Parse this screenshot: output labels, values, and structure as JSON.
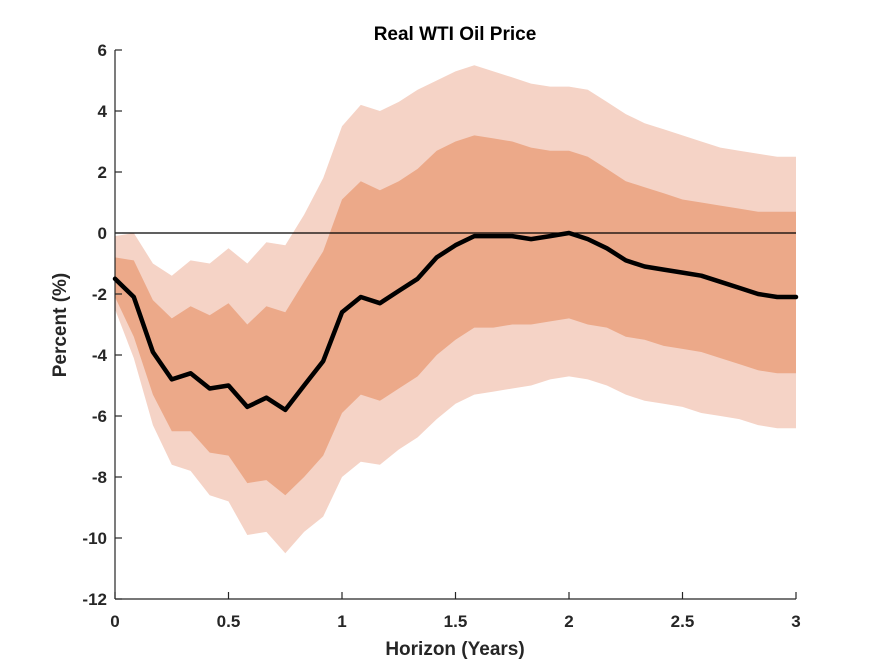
{
  "chart_data": {
    "type": "area",
    "title": "Real WTI Oil Price",
    "xlabel": "Horizon (Years)",
    "ylabel": "Percent (%)",
    "xlim": [
      0,
      3
    ],
    "ylim": [
      -12,
      6
    ],
    "x_ticks": [
      0,
      0.5,
      1,
      1.5,
      2,
      2.5,
      3
    ],
    "x_tick_labels": [
      "0",
      "0.5",
      "1",
      "1.5",
      "2",
      "2.5",
      "3"
    ],
    "y_ticks": [
      -12,
      -10,
      -8,
      -6,
      -4,
      -2,
      0,
      2,
      4,
      6
    ],
    "y_tick_labels": [
      "-12",
      "-10",
      "-8",
      "-6",
      "-4",
      "-2",
      "0",
      "2",
      "4",
      "6"
    ],
    "zero_line": 0,
    "colors": {
      "outer_band": "#f5d3c6",
      "inner_band": "#eca989",
      "median": "#000000",
      "zero_line": "#000000",
      "axis": "#262626"
    },
    "x": [
      0,
      0.083,
      0.167,
      0.25,
      0.333,
      0.417,
      0.5,
      0.583,
      0.667,
      0.75,
      0.833,
      0.917,
      1.0,
      1.083,
      1.167,
      1.25,
      1.333,
      1.417,
      1.5,
      1.583,
      1.667,
      1.75,
      1.833,
      1.917,
      2.0,
      2.083,
      2.167,
      2.25,
      2.333,
      2.417,
      2.5,
      2.583,
      2.667,
      2.75,
      2.833,
      2.917,
      3.0
    ],
    "series": [
      {
        "name": "Median",
        "values": [
          -1.5,
          -2.1,
          -3.9,
          -4.8,
          -4.6,
          -5.1,
          -5.0,
          -5.7,
          -5.4,
          -5.8,
          -5.0,
          -4.2,
          -2.6,
          -2.1,
          -2.3,
          -1.9,
          -1.5,
          -0.8,
          -0.4,
          -0.1,
          -0.1,
          -0.1,
          -0.2,
          -0.1,
          0.0,
          -0.2,
          -0.5,
          -0.9,
          -1.1,
          -1.2,
          -1.3,
          -1.4,
          -1.6,
          -1.8,
          -2.0,
          -2.1,
          -2.1
        ]
      },
      {
        "name": "Inner band upper",
        "values": [
          -0.8,
          -0.9,
          -2.2,
          -2.8,
          -2.4,
          -2.7,
          -2.3,
          -3.0,
          -2.4,
          -2.6,
          -1.6,
          -0.6,
          1.1,
          1.7,
          1.4,
          1.7,
          2.1,
          2.7,
          3.0,
          3.2,
          3.1,
          3.0,
          2.8,
          2.7,
          2.7,
          2.5,
          2.1,
          1.7,
          1.5,
          1.3,
          1.1,
          1.0,
          0.9,
          0.8,
          0.7,
          0.7,
          0.7
        ]
      },
      {
        "name": "Inner band lower",
        "values": [
          -2.1,
          -3.4,
          -5.3,
          -6.5,
          -6.5,
          -7.2,
          -7.3,
          -8.2,
          -8.1,
          -8.6,
          -8.0,
          -7.3,
          -5.9,
          -5.3,
          -5.5,
          -5.1,
          -4.7,
          -4.0,
          -3.5,
          -3.1,
          -3.1,
          -3.0,
          -3.0,
          -2.9,
          -2.8,
          -3.0,
          -3.1,
          -3.4,
          -3.5,
          -3.7,
          -3.8,
          -3.9,
          -4.1,
          -4.3,
          -4.5,
          -4.6,
          -4.6
        ]
      },
      {
        "name": "Outer band upper",
        "values": [
          -0.1,
          0.0,
          -1.0,
          -1.4,
          -0.9,
          -1.0,
          -0.5,
          -1.0,
          -0.3,
          -0.4,
          0.6,
          1.8,
          3.5,
          4.2,
          4.0,
          4.3,
          4.7,
          5.0,
          5.3,
          5.5,
          5.3,
          5.1,
          4.9,
          4.8,
          4.8,
          4.7,
          4.3,
          3.9,
          3.6,
          3.4,
          3.2,
          3.0,
          2.8,
          2.7,
          2.6,
          2.5,
          2.5
        ]
      },
      {
        "name": "Outer band lower",
        "values": [
          -2.5,
          -4.1,
          -6.3,
          -7.6,
          -7.8,
          -8.6,
          -8.8,
          -9.9,
          -9.8,
          -10.5,
          -9.8,
          -9.3,
          -8.0,
          -7.5,
          -7.6,
          -7.1,
          -6.7,
          -6.1,
          -5.6,
          -5.3,
          -5.2,
          -5.1,
          -5.0,
          -4.8,
          -4.7,
          -4.8,
          -5.0,
          -5.3,
          -5.5,
          -5.6,
          -5.7,
          -5.9,
          -6.0,
          -6.1,
          -6.3,
          -6.4,
          -6.4
        ]
      }
    ]
  }
}
